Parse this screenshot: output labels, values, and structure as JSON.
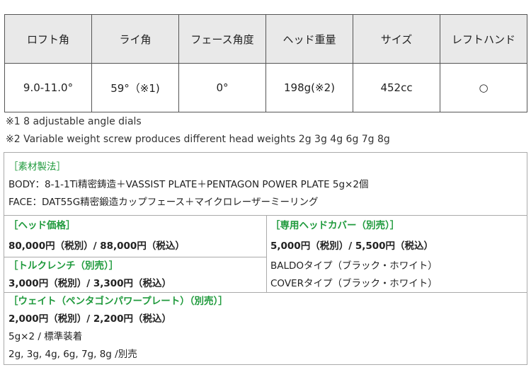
{
  "spec_table": {
    "headers": [
      "ロフト角",
      "ライ角",
      "フェース角度",
      "ヘッド重量",
      "サイズ",
      "レフトハンド"
    ],
    "values": [
      "9.0-11.0°",
      "59°（※1)",
      "0°",
      "198g(※2)",
      "452cc",
      "○"
    ]
  },
  "notes": [
    "※1  8 adjustable angle dials",
    "※2 Variable weight screw produces different head weights 2g 3g 4g 6g 7g 8g"
  ],
  "materials": {
    "title": "［素材製法］",
    "body": "BODY：8-1-1Ti精密鋳造＋VASSIST PLATE＋PENTAGON POWER PLATE 5g×2個",
    "face": "FACE：DAT55G精密鍛造カップフェース＋マイクロレーザーミーリング"
  },
  "head_price": {
    "title": "［ヘッド価格］",
    "price": "80,000円（税別）/ 88,000円（税込）"
  },
  "torque_wrench": {
    "title": "［トルクレンチ（別売）］",
    "price": "3,000円（税別）/ 3,300円（税込）"
  },
  "head_cover": {
    "title": "［専用ヘッドカバー（別売）］",
    "price": "5,000円（税別）/ 5,500円（税込）",
    "types": [
      "BALDOタイプ（ブラック・ホワイト）",
      "COVERタイプ（ブラック・ホワイト）"
    ]
  },
  "weight": {
    "title": "［ウェイト（ペンタゴンパワープレート）（別売）］",
    "price": "2,000円（税別）/ 2,200円（税込）",
    "standard": "5g×2 / 標準装着",
    "options": "2g, 3g, 4g, 6g, 7g, 8g /別売"
  },
  "colors": {
    "accent_green": "#1f9a3c",
    "header_bg": "#e9e9e9"
  }
}
